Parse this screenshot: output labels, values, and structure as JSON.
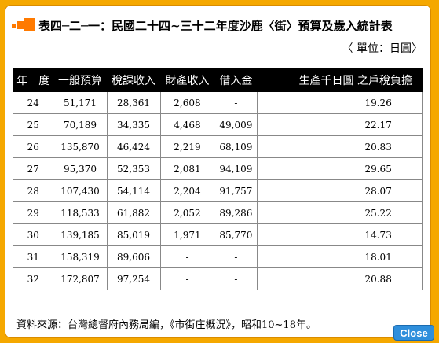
{
  "title": "表四─二─一：民國二十四~三十二年度沙鹿〈街〉預算及歲入統計表",
  "unit": "〈 單位：日圓〉",
  "columns": [
    "年　度",
    "一般預算",
    "稅課收入",
    "財產收入",
    "借入金",
    "生產千日圓 之戶稅負擔"
  ],
  "rows": [
    [
      "24",
      "51,171",
      "28,361",
      "2,608",
      "-",
      "19.26"
    ],
    [
      "25",
      "70,189",
      "34,335",
      "4,468",
      "49,009",
      "22.17"
    ],
    [
      "26",
      "135,870",
      "46,424",
      "2,219",
      "68,109",
      "20.83"
    ],
    [
      "27",
      "95,370",
      "52,353",
      "2,081",
      "94,109",
      "29.65"
    ],
    [
      "28",
      "107,430",
      "54,114",
      "2,204",
      "91,757",
      "28.07"
    ],
    [
      "29",
      "118,533",
      "61,882",
      "2,052",
      "89,286",
      "25.22"
    ],
    [
      "30",
      "139,185",
      "85,019",
      "1,971",
      "85,770",
      "14.73"
    ],
    [
      "31",
      "158,319",
      "89,606",
      "-",
      "-",
      "18.01"
    ],
    [
      "32",
      "172,807",
      "97,254",
      "-",
      "-",
      "20.88"
    ]
  ],
  "source": "資料來源：台灣總督府內務局編，《市街庄概況》，昭和10~18年。",
  "close_label": "Close"
}
